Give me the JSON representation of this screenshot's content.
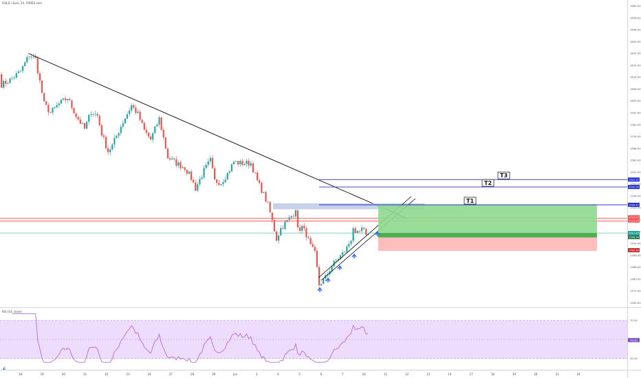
{
  "header": {
    "symbol_line": "GOLD / Euro, 1h, FOREX.com",
    "rsi_line": "RSI (14, close)"
  },
  "colors": {
    "up": "#26a69a",
    "down": "#ef5350",
    "trend": "#000000",
    "target": "#2433d1",
    "profit": "#4caf50",
    "profit_light": "#8fd98f",
    "loss": "#ffb6b6",
    "zone": "#b9c6e4",
    "resist": "#ff5252",
    "rsi": "#b36ad9",
    "rsi_band": "#eedcfc",
    "arrow": "#2962ff"
  },
  "targets": [
    {
      "label": "T3",
      "price": 1547
    },
    {
      "label": "T2",
      "price": 1542
    },
    {
      "label": "T1",
      "price": 1530
    }
  ],
  "price_tags": {
    "t3": "1547.27",
    "t2": "1542.35",
    "t1": "1530.47",
    "r1": "1521.87",
    "r2": "1519.20",
    "current": "1511.45",
    "current2": "1508.90",
    "stop": "1499.60"
  },
  "chart_data": [
    {
      "type": "candlestick",
      "title": "GOLD / Euro, 1h, FOREX.com",
      "y_ticks": [
        1664,
        1656,
        1648,
        1640,
        1632,
        1624,
        1616,
        1608,
        1600,
        1592,
        1584,
        1576,
        1568,
        1560,
        1552,
        1544,
        1536,
        1528,
        1520,
        1512,
        1504,
        1496,
        1488,
        1480,
        1472,
        1464
      ],
      "y_tick_labels": [
        "1664.00",
        "1656.00",
        "1648.00",
        "1640.00",
        "1632.00",
        "1624.00",
        "1616.00",
        "1608.00",
        "1600.00",
        "1592.00",
        "1584.00",
        "1576.00",
        "1568.00",
        "1560.00",
        "1552.00",
        "1544.00",
        "1536.00",
        "1528.00",
        "1520.00",
        "1512.00",
        "1504.00",
        "1496.00",
        "1488.00",
        "1480.00",
        "1472.00",
        "1464.00"
      ],
      "ylim": [
        1461,
        1668
      ],
      "x_labels": [
        "18",
        "19",
        "20",
        "21",
        "22",
        "23",
        "24",
        "27",
        "28",
        "29",
        "Jun",
        "3",
        "4",
        "5",
        "6",
        "7",
        "10",
        "11",
        "12",
        "13",
        "14",
        "17",
        "18",
        "19",
        "20",
        "21",
        "24"
      ],
      "series": [
        {
          "start": 1618,
          "points": [
            [
              0,
              1611
            ],
            [
              4,
              1614
            ],
            [
              9,
              1620
            ],
            [
              13,
              1631
            ],
            [
              16,
              1628
            ],
            [
              20,
              1598
            ],
            [
              23,
              1592
            ],
            [
              27,
              1598
            ],
            [
              31,
              1602
            ],
            [
              35,
              1590
            ],
            [
              39,
              1581
            ],
            [
              42,
              1593
            ],
            [
              45,
              1590
            ],
            [
              47,
              1578
            ],
            [
              50,
              1566
            ],
            [
              52,
              1570
            ],
            [
              56,
              1583
            ],
            [
              61,
              1597
            ],
            [
              64,
              1591
            ],
            [
              67,
              1580
            ],
            [
              70,
              1574
            ],
            [
              74,
              1588
            ],
            [
              78,
              1562
            ],
            [
              82,
              1558
            ],
            [
              86,
              1555
            ],
            [
              89,
              1548
            ],
            [
              91,
              1541
            ],
            [
              95,
              1553
            ],
            [
              98,
              1560
            ],
            [
              100,
              1546
            ],
            [
              103,
              1545
            ],
            [
              106,
              1551
            ],
            [
              109,
              1559
            ],
            [
              112,
              1558
            ],
            [
              117,
              1558
            ],
            [
              120,
              1546
            ],
            [
              123,
              1537
            ],
            [
              125,
              1530
            ],
            [
              127,
              1519
            ],
            [
              129,
              1507
            ],
            [
              131,
              1514
            ],
            [
              134,
              1519
            ],
            [
              137,
              1524
            ],
            [
              138,
              1528
            ],
            [
              139,
              1513
            ],
            [
              141,
              1515
            ],
            [
              143,
              1510
            ],
            [
              145,
              1502
            ],
            [
              147,
              1497
            ],
            [
              148,
              1487
            ],
            [
              149,
              1476
            ],
            [
              152,
              1481
            ],
            [
              155,
              1489
            ],
            [
              158,
              1494
            ],
            [
              160,
              1497
            ],
            [
              162,
              1501
            ],
            [
              164,
              1507
            ],
            [
              165,
              1515
            ],
            [
              166,
              1509
            ],
            [
              169,
              1513
            ],
            [
              172,
              1510
            ]
          ]
        }
      ],
      "annotations": [
        {
          "type": "trendline",
          "from": [
            13,
            1632
          ],
          "to": [
            180,
            1515
          ]
        },
        {
          "type": "supply-zone",
          "price_range": [
            1527,
            1531
          ]
        },
        {
          "type": "support-channel",
          "from": [
            148,
            1475
          ],
          "to": [
            187,
            1532
          ]
        },
        {
          "type": "long-position",
          "entry": 1508,
          "stop": 1499,
          "target": 1530
        },
        {
          "type": "horizontal",
          "price": 1521
        },
        {
          "type": "horizontal",
          "price": 1519
        },
        {
          "type": "horizontal",
          "price": 1511
        }
      ]
    },
    {
      "type": "line",
      "title": "RSI (14, close)",
      "y_ticks": [
        70,
        50,
        30
      ],
      "y_tick_labels": [
        "70.00",
        "50.00",
        "30.00"
      ],
      "ylim": [
        24,
        78
      ],
      "band": [
        30,
        70
      ],
      "current_label": "49.30"
    }
  ]
}
